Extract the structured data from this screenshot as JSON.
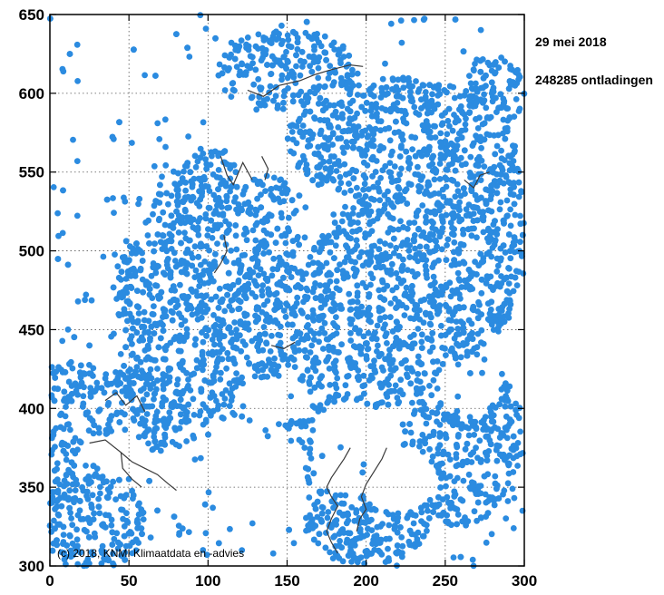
{
  "chart_data": {
    "type": "scatter",
    "title": "",
    "xlabel": "",
    "ylabel": "",
    "xlim": [
      0,
      300
    ],
    "ylim": [
      300,
      650
    ],
    "x_ticks": [
      0,
      50,
      100,
      150,
      200,
      250,
      300
    ],
    "y_ticks": [
      300,
      350,
      400,
      450,
      500,
      550,
      600,
      650
    ],
    "grid": true,
    "point_color": "#2b8be0",
    "border_color": "#3a3a3a",
    "date_label": "29 mei 2018",
    "count_label": "248285 ontladingen",
    "copyright": "(c) 2018, KNMI Klimaatdata en -advies",
    "dense_regions": [
      {
        "cx": 125,
        "cy": 440,
        "rx": 75,
        "ry": 55
      },
      {
        "cx": 160,
        "cy": 400,
        "rx": 50,
        "ry": 45
      },
      {
        "cx": 110,
        "cy": 510,
        "rx": 50,
        "ry": 55
      },
      {
        "cx": 220,
        "cy": 470,
        "rx": 60,
        "ry": 70
      },
      {
        "cx": 220,
        "cy": 570,
        "rx": 70,
        "ry": 40
      },
      {
        "cx": 150,
        "cy": 615,
        "rx": 45,
        "ry": 25
      },
      {
        "cx": 270,
        "cy": 520,
        "rx": 30,
        "ry": 80
      },
      {
        "cx": 260,
        "cy": 380,
        "rx": 40,
        "ry": 55
      },
      {
        "cx": 30,
        "cy": 330,
        "rx": 30,
        "ry": 35
      },
      {
        "cx": 60,
        "cy": 400,
        "rx": 40,
        "ry": 30
      },
      {
        "cx": 200,
        "cy": 330,
        "rx": 40,
        "ry": 30
      },
      {
        "cx": 75,
        "cy": 475,
        "rx": 35,
        "ry": 40
      },
      {
        "cx": 280,
        "cy": 600,
        "rx": 20,
        "ry": 25
      },
      {
        "cx": 15,
        "cy": 415,
        "rx": 18,
        "ry": 15
      },
      {
        "cx": 10,
        "cy": 350,
        "rx": 12,
        "ry": 50
      }
    ],
    "clear_regions": [
      {
        "cx": 20,
        "cy": 560,
        "rx": 25,
        "ry": 60
      },
      {
        "cx": 60,
        "cy": 620,
        "rx": 45,
        "ry": 30
      },
      {
        "cx": 130,
        "cy": 370,
        "rx": 30,
        "ry": 22
      },
      {
        "cx": 85,
        "cy": 355,
        "rx": 35,
        "ry": 20
      },
      {
        "cx": 190,
        "cy": 375,
        "rx": 25,
        "ry": 30
      },
      {
        "cx": 220,
        "cy": 355,
        "rx": 25,
        "ry": 20
      },
      {
        "cx": 265,
        "cy": 415,
        "rx": 20,
        "ry": 18
      },
      {
        "cx": 140,
        "cy": 405,
        "rx": 25,
        "ry": 15
      },
      {
        "cx": 45,
        "cy": 370,
        "rx": 18,
        "ry": 15
      },
      {
        "cx": 270,
        "cy": 640,
        "rx": 30,
        "ry": 12
      },
      {
        "cx": 130,
        "cy": 565,
        "rx": 18,
        "ry": 18
      }
    ],
    "border_lines": [
      [
        [
          25,
          378
        ],
        [
          35,
          380
        ],
        [
          45,
          372
        ],
        [
          52,
          366
        ],
        [
          60,
          362
        ],
        [
          68,
          358
        ],
        [
          75,
          352
        ],
        [
          80,
          348
        ]
      ],
      [
        [
          45,
          372
        ],
        [
          46,
          362
        ],
        [
          52,
          355
        ],
        [
          58,
          350
        ]
      ],
      [
        [
          190,
          375
        ],
        [
          186,
          368
        ],
        [
          182,
          362
        ],
        [
          178,
          356
        ],
        [
          175,
          350
        ],
        [
          178,
          344
        ],
        [
          182,
          338
        ],
        [
          178,
          330
        ],
        [
          175,
          322
        ],
        [
          178,
          315
        ],
        [
          182,
          308
        ]
      ],
      [
        [
          213,
          375
        ],
        [
          210,
          368
        ],
        [
          205,
          360
        ],
        [
          200,
          352
        ],
        [
          197,
          344
        ],
        [
          200,
          336
        ],
        [
          196,
          330
        ],
        [
          194,
          322
        ]
      ],
      [
        [
          110,
          510
        ],
        [
          112,
          500
        ],
        [
          108,
          492
        ],
        [
          104,
          486
        ]
      ],
      [
        [
          108,
          560
        ],
        [
          112,
          548
        ],
        [
          116,
          542
        ],
        [
          122,
          556
        ],
        [
          128,
          545
        ]
      ],
      [
        [
          134,
          560
        ],
        [
          138,
          552
        ],
        [
          136,
          545
        ]
      ],
      [
        [
          125,
          602
        ],
        [
          135,
          598
        ],
        [
          145,
          605
        ],
        [
          158,
          608
        ],
        [
          168,
          612
        ],
        [
          178,
          615
        ],
        [
          190,
          618
        ],
        [
          198,
          617
        ]
      ],
      [
        [
          35,
          405
        ],
        [
          42,
          410
        ],
        [
          48,
          402
        ],
        [
          55,
          408
        ],
        [
          60,
          398
        ]
      ],
      [
        [
          262,
          545
        ],
        [
          268,
          540
        ],
        [
          272,
          548
        ],
        [
          278,
          550
        ]
      ],
      [
        [
          140,
          440
        ],
        [
          148,
          438
        ],
        [
          155,
          442
        ]
      ]
    ]
  }
}
